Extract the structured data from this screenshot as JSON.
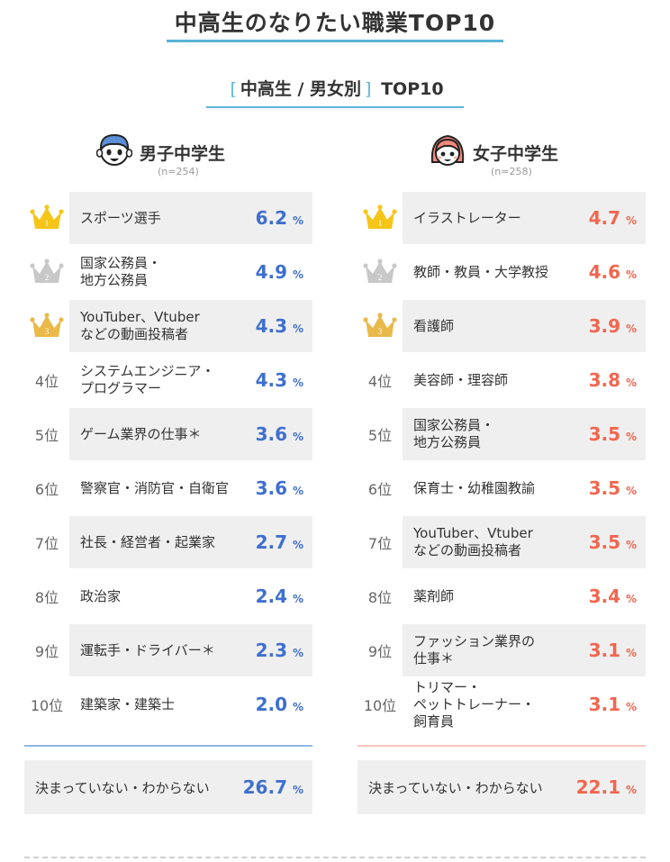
{
  "page_title": "中高生のなりたい職業TOP10",
  "subtitle": {
    "bracket_open": "[",
    "text": "中高生 / 男女別",
    "bracket_close": "]",
    "suffix": "TOP10"
  },
  "colors": {
    "accent": "#5ab4d6",
    "male": "#3f6fcf",
    "female": "#f2664f",
    "crown_gold": "#f5c518",
    "crown_silver": "#c8c8c8",
    "crown_bronze": "#e9b94a"
  },
  "percent_symbol": "%",
  "chart_data": [
    {
      "type": "table",
      "title": "男子中学生",
      "n_label": "(n=254)",
      "avatar_icon": "boy-face-icon",
      "rows": [
        {
          "rank": "1位",
          "medal": "gold-crown-icon",
          "label": "スポーツ選手",
          "value": 6.2
        },
        {
          "rank": "2位",
          "medal": "silver-crown-icon",
          "label": "国家公務員・\n地方公務員",
          "value": 4.9
        },
        {
          "rank": "3位",
          "medal": "bronze-crown-icon",
          "label": "YouTuber、Vtuber\nなどの動画投稿者",
          "value": 4.3
        },
        {
          "rank": "4位",
          "label": "システムエンジニア・\nプログラマー",
          "value": 4.3
        },
        {
          "rank": "5位",
          "label": "ゲーム業界の仕事＊",
          "value": 3.6
        },
        {
          "rank": "6位",
          "label": "警察官・消防官・自衛官",
          "value": 3.6
        },
        {
          "rank": "7位",
          "label": "社長・経営者・起業家",
          "value": 2.7
        },
        {
          "rank": "8位",
          "label": "政治家",
          "value": 2.4
        },
        {
          "rank": "9位",
          "label": "運転手・ドライバー＊",
          "value": 2.3
        },
        {
          "rank": "10位",
          "label": "建築家・建築士",
          "value": 2.0
        }
      ],
      "undecided": {
        "label": "決まっていない・わからない",
        "value": 26.7
      }
    },
    {
      "type": "table",
      "title": "女子中学生",
      "n_label": "(n=258)",
      "avatar_icon": "girl-face-icon",
      "rows": [
        {
          "rank": "1位",
          "medal": "gold-crown-icon",
          "label": "イラストレーター",
          "value": 4.7
        },
        {
          "rank": "2位",
          "medal": "silver-crown-icon",
          "label": "教師・教員・大学教授",
          "value": 4.6
        },
        {
          "rank": "3位",
          "medal": "bronze-crown-icon",
          "label": "看護師",
          "value": 3.9
        },
        {
          "rank": "4位",
          "label": "美容師・理容師",
          "value": 3.8
        },
        {
          "rank": "5位",
          "label": "国家公務員・\n地方公務員",
          "value": 3.5
        },
        {
          "rank": "6位",
          "label": "保育士・幼稚園教諭",
          "value": 3.5
        },
        {
          "rank": "7位",
          "label": "YouTuber、Vtuber\nなどの動画投稿者",
          "value": 3.5
        },
        {
          "rank": "8位",
          "label": "薬剤師",
          "value": 3.4
        },
        {
          "rank": "9位",
          "label": "ファッション業界の\n仕事＊",
          "value": 3.1
        },
        {
          "rank": "10位",
          "label": "トリマー・\nペットトレーナー・\n飼育員",
          "value": 3.1
        }
      ],
      "undecided": {
        "label": "決まっていない・わからない",
        "value": 22.1
      }
    }
  ]
}
